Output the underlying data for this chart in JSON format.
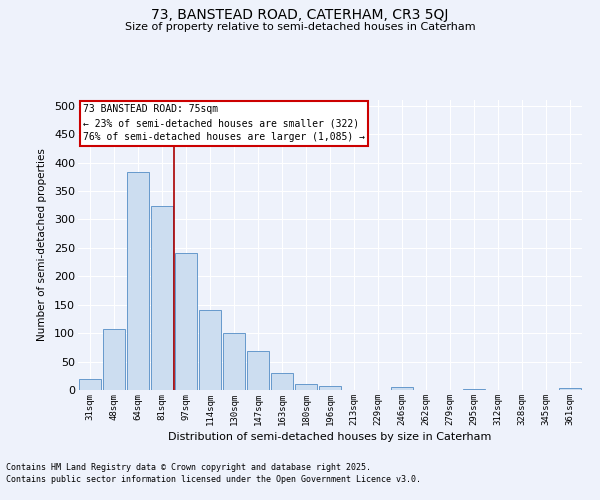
{
  "title1": "73, BANSTEAD ROAD, CATERHAM, CR3 5QJ",
  "title2": "Size of property relative to semi-detached houses in Caterham",
  "xlabel": "Distribution of semi-detached houses by size in Caterham",
  "ylabel": "Number of semi-detached properties",
  "categories": [
    "31sqm",
    "48sqm",
    "64sqm",
    "81sqm",
    "97sqm",
    "114sqm",
    "130sqm",
    "147sqm",
    "163sqm",
    "180sqm",
    "196sqm",
    "213sqm",
    "229sqm",
    "246sqm",
    "262sqm",
    "279sqm",
    "295sqm",
    "312sqm",
    "328sqm",
    "345sqm",
    "361sqm"
  ],
  "values": [
    20,
    108,
    383,
    323,
    241,
    140,
    100,
    68,
    30,
    10,
    7,
    0,
    0,
    6,
    0,
    0,
    2,
    0,
    0,
    0,
    3
  ],
  "bar_color": "#ccddf0",
  "bar_edge_color": "#6699cc",
  "background_color": "#eef2fb",
  "grid_color": "#ffffff",
  "vline_x": 3.5,
  "vline_color": "#aa0000",
  "annotation_title": "73 BANSTEAD ROAD: 75sqm",
  "annotation_line1": "← 23% of semi-detached houses are smaller (322)",
  "annotation_line2": "76% of semi-detached houses are larger (1,085) →",
  "annotation_box_color": "#cc0000",
  "footnote1": "Contains HM Land Registry data © Crown copyright and database right 2025.",
  "footnote2": "Contains public sector information licensed under the Open Government Licence v3.0.",
  "ylim": [
    0,
    510
  ],
  "yticks": [
    0,
    50,
    100,
    150,
    200,
    250,
    300,
    350,
    400,
    450,
    500
  ]
}
